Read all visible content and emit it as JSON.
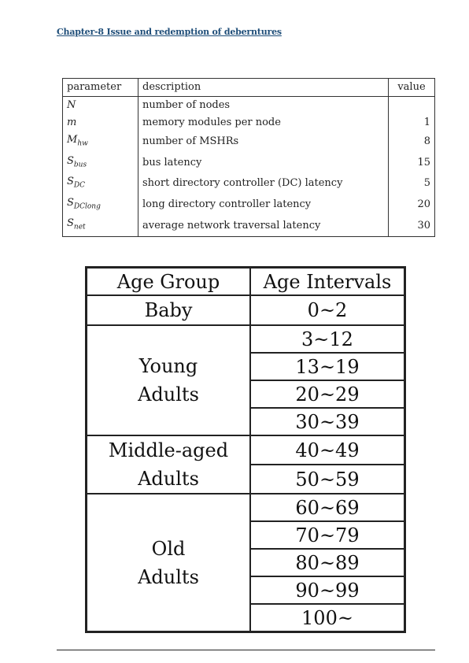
{
  "header": {
    "title": "Chapter-8 Issue and redemption of deberntures"
  },
  "table1": {
    "headers": [
      "parameter",
      "description",
      "value"
    ],
    "rows": [
      {
        "param": "N",
        "sub": "",
        "description": "number of nodes",
        "value": ""
      },
      {
        "param": "m",
        "sub": "",
        "description": "memory modules per node",
        "value": "1"
      },
      {
        "param": "M",
        "sub": "hw",
        "description": "number of MSHRs",
        "value": "8"
      },
      {
        "param": "S",
        "sub": "bus",
        "description": "bus latency",
        "value": "15"
      },
      {
        "param": "S",
        "sub": "DC",
        "description": "short directory controller (DC) latency",
        "value": "5"
      },
      {
        "param": "S",
        "sub": "DClong",
        "description": "long directory controller latency",
        "value": "20"
      },
      {
        "param": "S",
        "sub": "net",
        "description": "average network traversal latency",
        "value": "30"
      }
    ]
  },
  "table2": {
    "headers": [
      "Age Group",
      "Age Intervals"
    ],
    "groups": [
      {
        "label_lines": [
          "Baby"
        ],
        "intervals": [
          "0~2"
        ]
      },
      {
        "label_lines": [
          "Young",
          "Adults"
        ],
        "intervals": [
          "3~12",
          "13~19",
          "20~29",
          "30~39"
        ]
      },
      {
        "label_lines": [
          "Middle-aged",
          "Adults"
        ],
        "intervals": [
          "40~49",
          "50~59"
        ]
      },
      {
        "label_lines": [
          "Old",
          "Adults"
        ],
        "intervals": [
          "60~69",
          "70~79",
          "80~89",
          "90~99",
          "100~"
        ]
      }
    ]
  }
}
